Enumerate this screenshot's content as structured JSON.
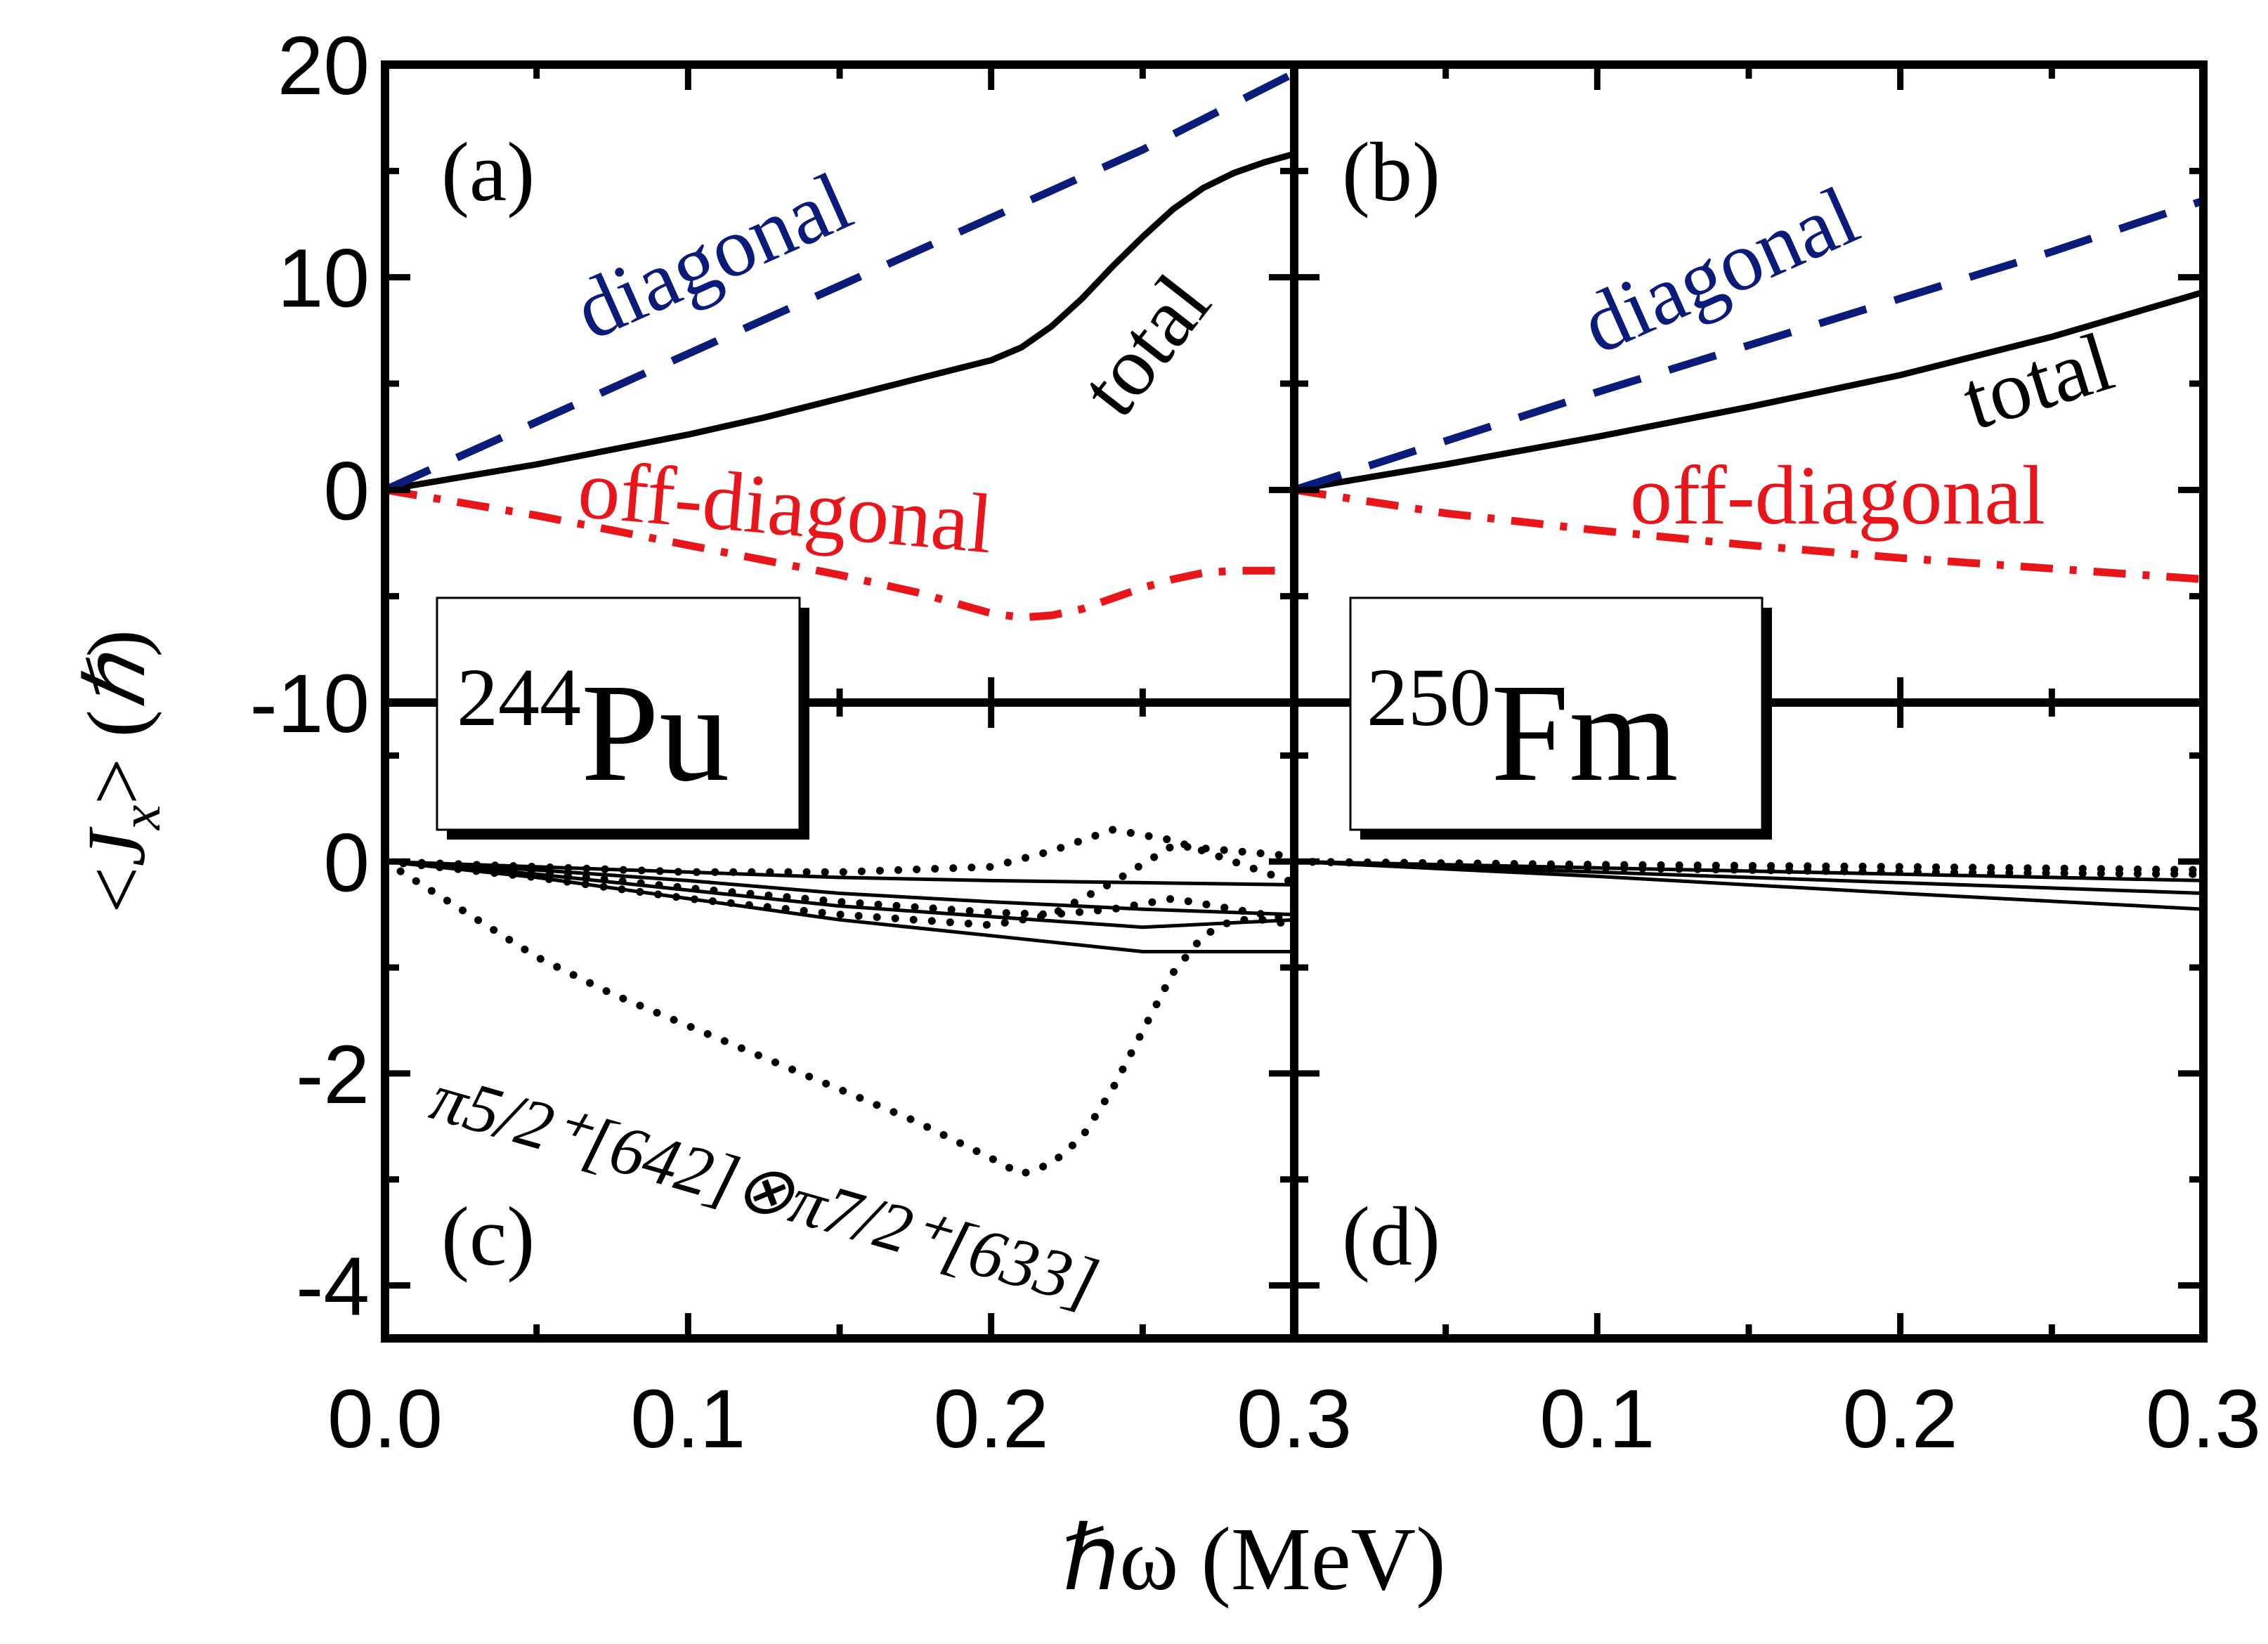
{
  "colors": {
    "total": "#000000",
    "diagonal": "#0b1b7a",
    "off_diagonal": "#e8161b",
    "axis": "#000000"
  },
  "labels": {
    "xlabel": "ℏω (MeV)",
    "ylabel_open": "<",
    "ylabel_J": "J",
    "ylabel_sub": "x",
    "ylabel_close": "> (",
    "ylabel_hbar": "ℏ",
    "ylabel_end": ")",
    "diag": "diagonal",
    "offdiag": "off-diagonal",
    "total": "total",
    "config": "π5/2⁺[642]⊗π7/2⁺[633]"
  },
  "nuclei": {
    "pu": {
      "mass": "244",
      "symbol": "Pu"
    },
    "fm": {
      "mass": "250",
      "symbol": "Fm"
    }
  },
  "chart_data": [
    {
      "panel": "(a)",
      "type": "line",
      "nucleus": "244Pu",
      "xlim": [
        0.0,
        0.3
      ],
      "ylim": [
        -10,
        20
      ],
      "xlabel": "ℏω (MeV)",
      "ylabel": "<Jx> (ℏ)",
      "xticks": [
        "0.0",
        "0.1",
        "0.2",
        "0.3"
      ],
      "yticks": [
        "20",
        "10",
        "0",
        "-10"
      ],
      "series": [
        {
          "name": "total",
          "style": "solid",
          "x": [
            0,
            0.025,
            0.05,
            0.075,
            0.1,
            0.125,
            0.15,
            0.175,
            0.2,
            0.21,
            0.22,
            0.23,
            0.24,
            0.25,
            0.26,
            0.27,
            0.28,
            0.29,
            0.3
          ],
          "y": [
            0,
            0.6,
            1.2,
            1.9,
            2.6,
            3.4,
            4.3,
            5.2,
            6.1,
            6.7,
            7.7,
            9.0,
            10.5,
            11.9,
            13.2,
            14.2,
            14.9,
            15.4,
            15.8
          ]
        },
        {
          "name": "diagonal",
          "style": "dashed",
          "x": [
            0,
            0.05,
            0.1,
            0.15,
            0.2,
            0.25,
            0.3
          ],
          "y": [
            0,
            3.2,
            6.4,
            9.6,
            12.8,
            16.0,
            19.6
          ]
        },
        {
          "name": "off-diagonal",
          "style": "dashdot",
          "x": [
            0,
            0.025,
            0.05,
            0.075,
            0.1,
            0.125,
            0.15,
            0.175,
            0.2,
            0.21,
            0.22,
            0.23,
            0.24,
            0.25,
            0.26,
            0.27,
            0.28,
            0.29,
            0.3
          ],
          "y": [
            0,
            -0.6,
            -1.2,
            -1.9,
            -2.6,
            -3.3,
            -4.0,
            -4.8,
            -5.8,
            -6.0,
            -5.9,
            -5.6,
            -5.1,
            -4.6,
            -4.2,
            -3.9,
            -3.8,
            -3.8,
            -3.8
          ]
        }
      ]
    },
    {
      "panel": "(b)",
      "type": "line",
      "nucleus": "250Fm",
      "xlim": [
        0.0,
        0.3
      ],
      "ylim": [
        -10,
        20
      ],
      "xticks": [
        "0.1",
        "0.2",
        "0.3"
      ],
      "series": [
        {
          "name": "total",
          "style": "solid",
          "x": [
            0,
            0.05,
            0.1,
            0.15,
            0.2,
            0.25,
            0.3
          ],
          "y": [
            0,
            1.2,
            2.5,
            3.9,
            5.4,
            7.2,
            9.3
          ]
        },
        {
          "name": "diagonal",
          "style": "dashed",
          "x": [
            0,
            0.05,
            0.1,
            0.15,
            0.2,
            0.25,
            0.3
          ],
          "y": [
            0,
            2.3,
            4.6,
            6.8,
            9.0,
            11.2,
            13.6
          ]
        },
        {
          "name": "off-diagonal",
          "style": "dashdot",
          "x": [
            0,
            0.05,
            0.1,
            0.15,
            0.2,
            0.25,
            0.3
          ],
          "y": [
            0,
            -1.1,
            -1.9,
            -2.6,
            -3.2,
            -3.7,
            -4.2
          ]
        }
      ]
    },
    {
      "panel": "(c)",
      "type": "line",
      "nucleus": "244Pu",
      "xlim": [
        0.0,
        0.3
      ],
      "ylim": [
        -4.5,
        1.5
      ],
      "xlabel": "ℏω (MeV)",
      "xticks": [
        "0.0",
        "0.1",
        "0.2",
        "0.3"
      ],
      "yticks": [
        "0",
        "-2",
        "-4"
      ],
      "series": [
        {
          "name": "solid-1",
          "style": "solid-thin",
          "x": [
            0,
            0.05,
            0.1,
            0.15,
            0.2,
            0.25,
            0.3
          ],
          "y": [
            0,
            -0.05,
            -0.1,
            -0.15,
            -0.18,
            -0.2,
            -0.22
          ]
        },
        {
          "name": "solid-2",
          "style": "solid-thin",
          "x": [
            0,
            0.05,
            0.1,
            0.15,
            0.2,
            0.25,
            0.3
          ],
          "y": [
            0,
            -0.08,
            -0.18,
            -0.3,
            -0.38,
            -0.45,
            -0.5
          ]
        },
        {
          "name": "solid-3",
          "style": "solid-thin",
          "x": [
            0,
            0.05,
            0.1,
            0.15,
            0.2,
            0.25,
            0.3
          ],
          "y": [
            0,
            -0.12,
            -0.27,
            -0.42,
            -0.52,
            -0.62,
            -0.55
          ]
        },
        {
          "name": "solid-4",
          "style": "solid-thin",
          "x": [
            0,
            0.05,
            0.1,
            0.15,
            0.2,
            0.25,
            0.3
          ],
          "y": [
            0,
            -0.15,
            -0.35,
            -0.55,
            -0.7,
            -0.85,
            -0.85
          ]
        },
        {
          "name": "dotted-1",
          "style": "dotted",
          "x": [
            0,
            0.05,
            0.1,
            0.15,
            0.2,
            0.22,
            0.24,
            0.26,
            0.28,
            0.3
          ],
          "y": [
            0,
            -0.05,
            -0.1,
            -0.1,
            -0.05,
            0.1,
            0.3,
            0.2,
            0.0,
            -0.2
          ]
        },
        {
          "name": "dotted-2",
          "style": "dotted",
          "x": [
            0,
            0.05,
            0.1,
            0.15,
            0.2,
            0.22,
            0.24,
            0.26,
            0.28,
            0.3
          ],
          "y": [
            0,
            -0.15,
            -0.35,
            -0.5,
            -0.6,
            -0.5,
            -0.2,
            0.15,
            0.1,
            0.05
          ]
        },
        {
          "name": "dotted-3",
          "style": "dotted",
          "x": [
            0,
            0.05,
            0.1,
            0.15,
            0.2,
            0.22,
            0.24,
            0.26,
            0.28,
            0.3
          ],
          "y": [
            0,
            -0.1,
            -0.25,
            -0.38,
            -0.48,
            -0.5,
            -0.45,
            -0.35,
            -0.45,
            -0.55
          ]
        },
        {
          "name": "π5/2⁺[642]⊗π7/2⁺[633]",
          "style": "dotted",
          "x": [
            0,
            0.025,
            0.05,
            0.075,
            0.1,
            0.125,
            0.15,
            0.175,
            0.2,
            0.21,
            0.22,
            0.23,
            0.24,
            0.25,
            0.26,
            0.27,
            0.28,
            0.29,
            0.3
          ],
          "y": [
            0,
            -0.45,
            -0.9,
            -1.25,
            -1.55,
            -1.85,
            -2.15,
            -2.45,
            -2.8,
            -2.95,
            -2.85,
            -2.6,
            -2.15,
            -1.6,
            -1.05,
            -0.7,
            -0.55,
            -0.55,
            -0.6
          ]
        }
      ]
    },
    {
      "panel": "(d)",
      "type": "line",
      "nucleus": "250Fm",
      "xlim": [
        0.0,
        0.3
      ],
      "ylim": [
        -4.5,
        1.5
      ],
      "xticks": [
        "0.1",
        "0.2",
        "0.3"
      ],
      "series": [
        {
          "name": "solid-1",
          "style": "solid-thin",
          "x": [
            0,
            0.1,
            0.2,
            0.3
          ],
          "y": [
            0,
            -0.06,
            -0.12,
            -0.18
          ]
        },
        {
          "name": "solid-2",
          "style": "solid-thin",
          "x": [
            0,
            0.1,
            0.2,
            0.3
          ],
          "y": [
            0,
            -0.1,
            -0.2,
            -0.3
          ]
        },
        {
          "name": "solid-3",
          "style": "solid-thin",
          "x": [
            0,
            0.1,
            0.2,
            0.3
          ],
          "y": [
            0,
            -0.14,
            -0.3,
            -0.45
          ]
        },
        {
          "name": "dotted-1",
          "style": "dotted",
          "x": [
            0,
            0.1,
            0.2,
            0.3
          ],
          "y": [
            0,
            -0.03,
            -0.05,
            -0.08
          ]
        },
        {
          "name": "dotted-2",
          "style": "dotted",
          "x": [
            0,
            0.1,
            0.2,
            0.3
          ],
          "y": [
            0,
            -0.06,
            -0.1,
            -0.12
          ]
        }
      ]
    }
  ]
}
